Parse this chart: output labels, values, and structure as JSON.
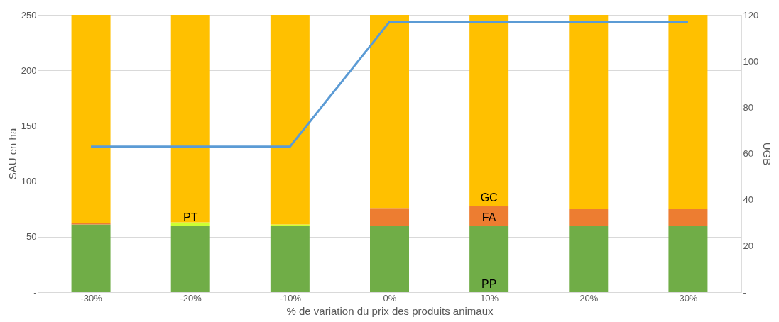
{
  "chart_data": {
    "type": "bar",
    "stacked": true,
    "xlabel": "% de variation du prix des produits animaux",
    "ylabel": "SAU en ha",
    "y2label": "UGB",
    "categories": [
      "-30%",
      "-20%",
      "-10%",
      "0%",
      "10%",
      "20%",
      "30%"
    ],
    "series": [
      {
        "color": "#70ad47",
        "values": [
          61,
          60,
          60,
          60,
          60,
          60,
          60
        ]
      },
      {
        "color": "#ccff33",
        "values": [
          0,
          3,
          1,
          0,
          0,
          0,
          0
        ]
      },
      {
        "color": "#ed7d31",
        "values": [
          1,
          0,
          0,
          16,
          18,
          15,
          15
        ]
      },
      {
        "color": "#ffc000",
        "values": [
          188,
          187,
          189,
          174,
          172,
          175,
          175
        ]
      },
      {
        "type": "line",
        "axis": "y2",
        "color": "#5b9bd5",
        "values": [
          63,
          63,
          63,
          117,
          117,
          117,
          117
        ]
      }
    ],
    "ylim": [
      0,
      250
    ],
    "yticks": [
      {
        "value": 0,
        "label": "-"
      },
      50,
      100,
      150,
      200,
      250
    ],
    "y2lim": [
      0,
      120
    ],
    "y2ticks": [
      {
        "value": 0,
        "label": "-"
      },
      20,
      40,
      60,
      80,
      100,
      120
    ],
    "annotations": [
      {
        "text": "GC",
        "x": "10%",
        "y": 78
      },
      {
        "text": "FA",
        "x": "10%",
        "y": 60
      },
      {
        "text": "PT",
        "x": "-20%",
        "y": 60
      },
      {
        "text": "PP",
        "x": "10%",
        "y": 0
      }
    ],
    "grid": "y",
    "legend": false
  }
}
